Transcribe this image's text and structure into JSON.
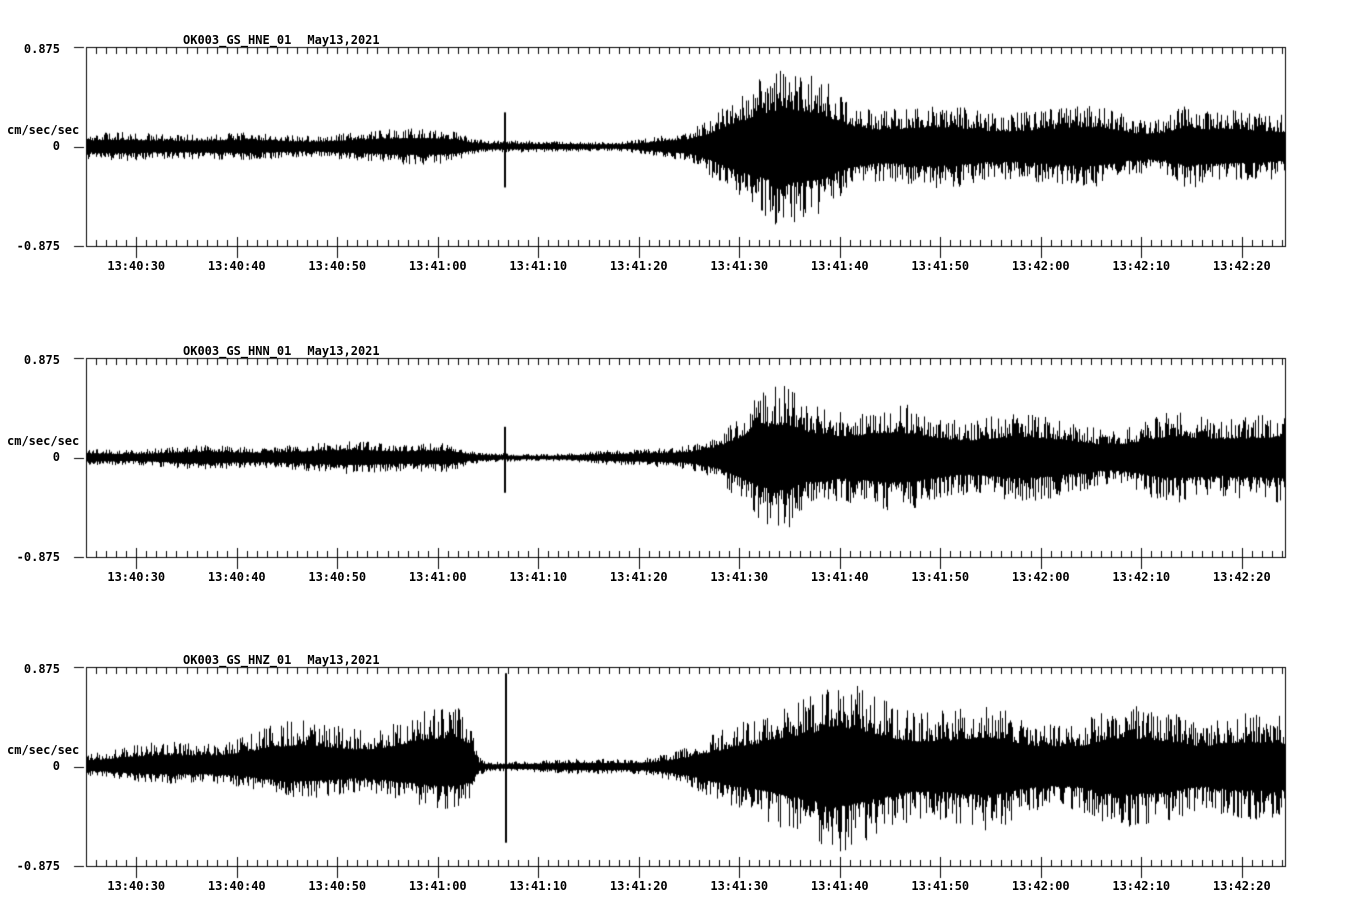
{
  "page": {
    "background": "#ffffff",
    "ink": "#000000"
  },
  "chart_data": {
    "type": "line",
    "kind": "seismogram-three-component",
    "station": "OK003",
    "network": "GS",
    "date": "May13,2021",
    "ylabel": "cm/sec/sec",
    "ylim": [
      -0.875,
      0.875
    ],
    "y_tick_labels": [
      "0.875",
      "0",
      "-0.875"
    ],
    "y_tick_values": [
      0.875,
      0,
      -0.875
    ],
    "x_tick_labels": [
      "13:40:30",
      "13:40:40",
      "13:40:50",
      "13:41:00",
      "13:41:10",
      "13:41:20",
      "13:41:30",
      "13:41:40",
      "13:41:50",
      "13:42:00",
      "13:42:10",
      "13:42:20"
    ],
    "x_tick_seconds": [
      30,
      40,
      50,
      60,
      70,
      80,
      90,
      100,
      110,
      120,
      130,
      140
    ],
    "time_start": "13:40:25",
    "time_end": "13:42:24",
    "minor_tick_interval_sec": 1,
    "major_tick_interval_sec": 10,
    "grid": false,
    "legend": "none",
    "trace_color": "#000000",
    "panels": [
      {
        "id": "OK003_GS_HNE_01",
        "date": "May13,2021",
        "ylabel": "cm/sec/sec",
        "y_top_label": "0.875",
        "y_zero_label": "0",
        "y_bottom_label": "-0.875",
        "envelope_t_amp": [
          [
            25,
            0.1
          ],
          [
            30,
            0.11
          ],
          [
            35,
            0.12
          ],
          [
            40,
            0.11
          ],
          [
            45,
            0.12
          ],
          [
            50,
            0.13
          ],
          [
            54,
            0.12
          ],
          [
            57,
            0.14
          ],
          [
            60,
            0.16
          ],
          [
            62,
            0.14
          ],
          [
            63.5,
            0.07
          ],
          [
            65,
            0.05
          ],
          [
            70,
            0.045
          ],
          [
            74,
            0.06
          ],
          [
            78,
            0.05
          ],
          [
            81,
            0.07
          ],
          [
            83,
            0.1
          ],
          [
            85,
            0.12
          ],
          [
            87,
            0.25
          ],
          [
            89,
            0.45
          ],
          [
            91,
            0.55
          ],
          [
            93,
            0.6
          ],
          [
            94.5,
            0.64
          ],
          [
            96,
            0.56
          ],
          [
            98,
            0.58
          ],
          [
            100,
            0.5
          ],
          [
            103,
            0.44
          ],
          [
            106,
            0.4
          ],
          [
            110,
            0.34
          ],
          [
            114,
            0.31
          ],
          [
            118,
            0.32
          ],
          [
            122,
            0.3
          ],
          [
            126,
            0.32
          ],
          [
            130,
            0.3
          ],
          [
            133,
            0.36
          ],
          [
            134.5,
            0.44
          ],
          [
            136,
            0.33
          ],
          [
            139,
            0.3
          ],
          [
            142,
            0.32
          ],
          [
            144.3,
            0.31
          ]
        ],
        "spikes": [
          {
            "t": 66.6,
            "up": 0.3,
            "down": 0.36
          }
        ],
        "skew": null
      },
      {
        "id": "OK003_GS_HNN_01",
        "date": "May13,2021",
        "ylabel": "cm/sec/sec",
        "y_top_label": "0.875",
        "y_zero_label": "0",
        "y_bottom_label": "-0.875",
        "envelope_t_amp": [
          [
            25,
            0.07
          ],
          [
            30,
            0.08
          ],
          [
            35,
            0.1
          ],
          [
            40,
            0.11
          ],
          [
            44,
            0.12
          ],
          [
            48,
            0.11
          ],
          [
            52,
            0.12
          ],
          [
            56,
            0.13
          ],
          [
            59,
            0.14
          ],
          [
            61,
            0.13
          ],
          [
            63,
            0.06
          ],
          [
            65,
            0.04
          ],
          [
            70,
            0.04
          ],
          [
            75,
            0.05
          ],
          [
            79,
            0.06
          ],
          [
            82,
            0.08
          ],
          [
            84,
            0.1
          ],
          [
            86,
            0.14
          ],
          [
            88,
            0.22
          ],
          [
            90,
            0.35
          ],
          [
            92,
            0.5
          ],
          [
            93.5,
            0.62
          ],
          [
            95,
            0.68
          ],
          [
            96.5,
            0.58
          ],
          [
            98,
            0.63
          ],
          [
            100,
            0.52
          ],
          [
            102,
            0.46
          ],
          [
            105,
            0.42
          ],
          [
            108,
            0.38
          ],
          [
            112,
            0.35
          ],
          [
            116,
            0.36
          ],
          [
            120,
            0.33
          ],
          [
            124,
            0.35
          ],
          [
            128,
            0.33
          ],
          [
            132,
            0.36
          ],
          [
            135,
            0.34
          ],
          [
            138,
            0.36
          ],
          [
            141,
            0.4
          ],
          [
            144.3,
            0.36
          ]
        ],
        "spikes": [
          {
            "t": 66.6,
            "up": 0.27,
            "down": 0.31
          }
        ],
        "skew": null
      },
      {
        "id": "OK003_GS_HNZ_01",
        "date": "May13,2021",
        "ylabel": "cm/sec/sec",
        "y_top_label": "0.875",
        "y_zero_label": "0",
        "y_bottom_label": "-0.875",
        "envelope_t_amp": [
          [
            25,
            0.13
          ],
          [
            30,
            0.16
          ],
          [
            35,
            0.19
          ],
          [
            40,
            0.23
          ],
          [
            45,
            0.27
          ],
          [
            48,
            0.3
          ],
          [
            52,
            0.33
          ],
          [
            55,
            0.36
          ],
          [
            58,
            0.4
          ],
          [
            60,
            0.44
          ],
          [
            62,
            0.46
          ],
          [
            63.2,
            0.42
          ],
          [
            64,
            0.1
          ],
          [
            65,
            0.05
          ],
          [
            68,
            0.05
          ],
          [
            72,
            0.05
          ],
          [
            76,
            0.06
          ],
          [
            79,
            0.07
          ],
          [
            81,
            0.09
          ],
          [
            83,
            0.13
          ],
          [
            85,
            0.18
          ],
          [
            87,
            0.25
          ],
          [
            89,
            0.35
          ],
          [
            91,
            0.48
          ],
          [
            93,
            0.62
          ],
          [
            95,
            0.72
          ],
          [
            97,
            0.64
          ],
          [
            99,
            0.68
          ],
          [
            101,
            0.6
          ],
          [
            103,
            0.55
          ],
          [
            106,
            0.52
          ],
          [
            109,
            0.54
          ],
          [
            112,
            0.5
          ],
          [
            115,
            0.52
          ],
          [
            118,
            0.48
          ],
          [
            121,
            0.5
          ],
          [
            124,
            0.46
          ],
          [
            127,
            0.48
          ],
          [
            130,
            0.44
          ],
          [
            133,
            0.46
          ],
          [
            136,
            0.42
          ],
          [
            139,
            0.44
          ],
          [
            142,
            0.41
          ],
          [
            144.3,
            0.42
          ]
        ],
        "spikes": [
          {
            "t": 66.7,
            "up": 0.82,
            "down": 0.67
          }
        ],
        "skew": {
          "until": 64,
          "pos": 1.18,
          "neg": 0.82
        }
      }
    ]
  }
}
